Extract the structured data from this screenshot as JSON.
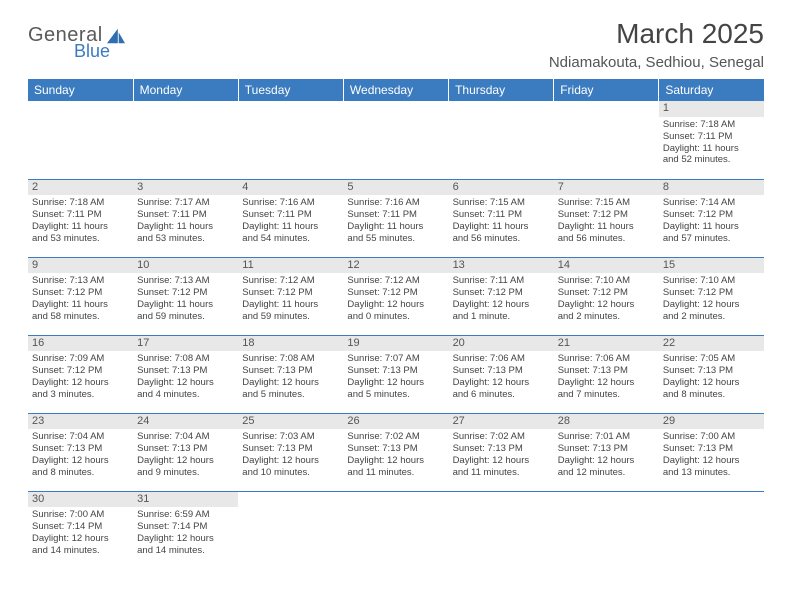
{
  "logo": {
    "text1": "General",
    "text2": "Blue"
  },
  "title": "March 2025",
  "location": "Ndiamakouta, Sedhiou, Senegal",
  "colors": {
    "header_bg": "#3b7bbf",
    "header_text": "#ffffff",
    "daynum_bg": "#e8e8e8",
    "cell_border": "#3b7bbf",
    "body_text": "#444444",
    "logo_gray": "#5a5a5a",
    "logo_blue": "#3b7bbf"
  },
  "day_headers": [
    "Sunday",
    "Monday",
    "Tuesday",
    "Wednesday",
    "Thursday",
    "Friday",
    "Saturday"
  ],
  "weeks": [
    [
      {
        "n": "",
        "sr": "",
        "ss": "",
        "d1": "",
        "d2": ""
      },
      {
        "n": "",
        "sr": "",
        "ss": "",
        "d1": "",
        "d2": ""
      },
      {
        "n": "",
        "sr": "",
        "ss": "",
        "d1": "",
        "d2": ""
      },
      {
        "n": "",
        "sr": "",
        "ss": "",
        "d1": "",
        "d2": ""
      },
      {
        "n": "",
        "sr": "",
        "ss": "",
        "d1": "",
        "d2": ""
      },
      {
        "n": "",
        "sr": "",
        "ss": "",
        "d1": "",
        "d2": ""
      },
      {
        "n": "1",
        "sr": "Sunrise: 7:18 AM",
        "ss": "Sunset: 7:11 PM",
        "d1": "Daylight: 11 hours",
        "d2": "and 52 minutes."
      }
    ],
    [
      {
        "n": "2",
        "sr": "Sunrise: 7:18 AM",
        "ss": "Sunset: 7:11 PM",
        "d1": "Daylight: 11 hours",
        "d2": "and 53 minutes."
      },
      {
        "n": "3",
        "sr": "Sunrise: 7:17 AM",
        "ss": "Sunset: 7:11 PM",
        "d1": "Daylight: 11 hours",
        "d2": "and 53 minutes."
      },
      {
        "n": "4",
        "sr": "Sunrise: 7:16 AM",
        "ss": "Sunset: 7:11 PM",
        "d1": "Daylight: 11 hours",
        "d2": "and 54 minutes."
      },
      {
        "n": "5",
        "sr": "Sunrise: 7:16 AM",
        "ss": "Sunset: 7:11 PM",
        "d1": "Daylight: 11 hours",
        "d2": "and 55 minutes."
      },
      {
        "n": "6",
        "sr": "Sunrise: 7:15 AM",
        "ss": "Sunset: 7:11 PM",
        "d1": "Daylight: 11 hours",
        "d2": "and 56 minutes."
      },
      {
        "n": "7",
        "sr": "Sunrise: 7:15 AM",
        "ss": "Sunset: 7:12 PM",
        "d1": "Daylight: 11 hours",
        "d2": "and 56 minutes."
      },
      {
        "n": "8",
        "sr": "Sunrise: 7:14 AM",
        "ss": "Sunset: 7:12 PM",
        "d1": "Daylight: 11 hours",
        "d2": "and 57 minutes."
      }
    ],
    [
      {
        "n": "9",
        "sr": "Sunrise: 7:13 AM",
        "ss": "Sunset: 7:12 PM",
        "d1": "Daylight: 11 hours",
        "d2": "and 58 minutes."
      },
      {
        "n": "10",
        "sr": "Sunrise: 7:13 AM",
        "ss": "Sunset: 7:12 PM",
        "d1": "Daylight: 11 hours",
        "d2": "and 59 minutes."
      },
      {
        "n": "11",
        "sr": "Sunrise: 7:12 AM",
        "ss": "Sunset: 7:12 PM",
        "d1": "Daylight: 11 hours",
        "d2": "and 59 minutes."
      },
      {
        "n": "12",
        "sr": "Sunrise: 7:12 AM",
        "ss": "Sunset: 7:12 PM",
        "d1": "Daylight: 12 hours",
        "d2": "and 0 minutes."
      },
      {
        "n": "13",
        "sr": "Sunrise: 7:11 AM",
        "ss": "Sunset: 7:12 PM",
        "d1": "Daylight: 12 hours",
        "d2": "and 1 minute."
      },
      {
        "n": "14",
        "sr": "Sunrise: 7:10 AM",
        "ss": "Sunset: 7:12 PM",
        "d1": "Daylight: 12 hours",
        "d2": "and 2 minutes."
      },
      {
        "n": "15",
        "sr": "Sunrise: 7:10 AM",
        "ss": "Sunset: 7:12 PM",
        "d1": "Daylight: 12 hours",
        "d2": "and 2 minutes."
      }
    ],
    [
      {
        "n": "16",
        "sr": "Sunrise: 7:09 AM",
        "ss": "Sunset: 7:12 PM",
        "d1": "Daylight: 12 hours",
        "d2": "and 3 minutes."
      },
      {
        "n": "17",
        "sr": "Sunrise: 7:08 AM",
        "ss": "Sunset: 7:13 PM",
        "d1": "Daylight: 12 hours",
        "d2": "and 4 minutes."
      },
      {
        "n": "18",
        "sr": "Sunrise: 7:08 AM",
        "ss": "Sunset: 7:13 PM",
        "d1": "Daylight: 12 hours",
        "d2": "and 5 minutes."
      },
      {
        "n": "19",
        "sr": "Sunrise: 7:07 AM",
        "ss": "Sunset: 7:13 PM",
        "d1": "Daylight: 12 hours",
        "d2": "and 5 minutes."
      },
      {
        "n": "20",
        "sr": "Sunrise: 7:06 AM",
        "ss": "Sunset: 7:13 PM",
        "d1": "Daylight: 12 hours",
        "d2": "and 6 minutes."
      },
      {
        "n": "21",
        "sr": "Sunrise: 7:06 AM",
        "ss": "Sunset: 7:13 PM",
        "d1": "Daylight: 12 hours",
        "d2": "and 7 minutes."
      },
      {
        "n": "22",
        "sr": "Sunrise: 7:05 AM",
        "ss": "Sunset: 7:13 PM",
        "d1": "Daylight: 12 hours",
        "d2": "and 8 minutes."
      }
    ],
    [
      {
        "n": "23",
        "sr": "Sunrise: 7:04 AM",
        "ss": "Sunset: 7:13 PM",
        "d1": "Daylight: 12 hours",
        "d2": "and 8 minutes."
      },
      {
        "n": "24",
        "sr": "Sunrise: 7:04 AM",
        "ss": "Sunset: 7:13 PM",
        "d1": "Daylight: 12 hours",
        "d2": "and 9 minutes."
      },
      {
        "n": "25",
        "sr": "Sunrise: 7:03 AM",
        "ss": "Sunset: 7:13 PM",
        "d1": "Daylight: 12 hours",
        "d2": "and 10 minutes."
      },
      {
        "n": "26",
        "sr": "Sunrise: 7:02 AM",
        "ss": "Sunset: 7:13 PM",
        "d1": "Daylight: 12 hours",
        "d2": "and 11 minutes."
      },
      {
        "n": "27",
        "sr": "Sunrise: 7:02 AM",
        "ss": "Sunset: 7:13 PM",
        "d1": "Daylight: 12 hours",
        "d2": "and 11 minutes."
      },
      {
        "n": "28",
        "sr": "Sunrise: 7:01 AM",
        "ss": "Sunset: 7:13 PM",
        "d1": "Daylight: 12 hours",
        "d2": "and 12 minutes."
      },
      {
        "n": "29",
        "sr": "Sunrise: 7:00 AM",
        "ss": "Sunset: 7:13 PM",
        "d1": "Daylight: 12 hours",
        "d2": "and 13 minutes."
      }
    ],
    [
      {
        "n": "30",
        "sr": "Sunrise: 7:00 AM",
        "ss": "Sunset: 7:14 PM",
        "d1": "Daylight: 12 hours",
        "d2": "and 14 minutes."
      },
      {
        "n": "31",
        "sr": "Sunrise: 6:59 AM",
        "ss": "Sunset: 7:14 PM",
        "d1": "Daylight: 12 hours",
        "d2": "and 14 minutes."
      },
      {
        "n": "",
        "sr": "",
        "ss": "",
        "d1": "",
        "d2": ""
      },
      {
        "n": "",
        "sr": "",
        "ss": "",
        "d1": "",
        "d2": ""
      },
      {
        "n": "",
        "sr": "",
        "ss": "",
        "d1": "",
        "d2": ""
      },
      {
        "n": "",
        "sr": "",
        "ss": "",
        "d1": "",
        "d2": ""
      },
      {
        "n": "",
        "sr": "",
        "ss": "",
        "d1": "",
        "d2": ""
      }
    ]
  ]
}
